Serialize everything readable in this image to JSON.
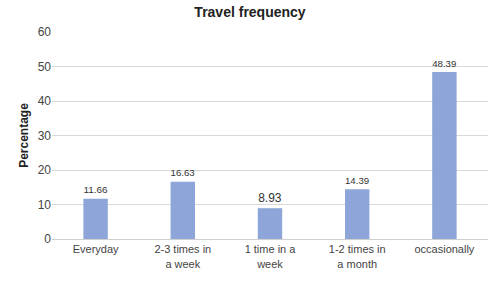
{
  "chart_data": {
    "type": "bar",
    "title": "Travel frequency",
    "y_label": "Percentage",
    "categories": [
      "Everyday",
      "2-3 times in a week",
      "1 time in a week",
      "1-2 times in a month",
      "occasionally"
    ],
    "values": [
      11.66,
      16.63,
      8.93,
      14.39,
      48.39
    ],
    "color": "#8ea5d9",
    "ylim": [
      0,
      60
    ],
    "yticks": [
      0,
      10,
      20,
      30,
      40,
      50,
      60
    ],
    "grid": true,
    "data_labels": true
  }
}
